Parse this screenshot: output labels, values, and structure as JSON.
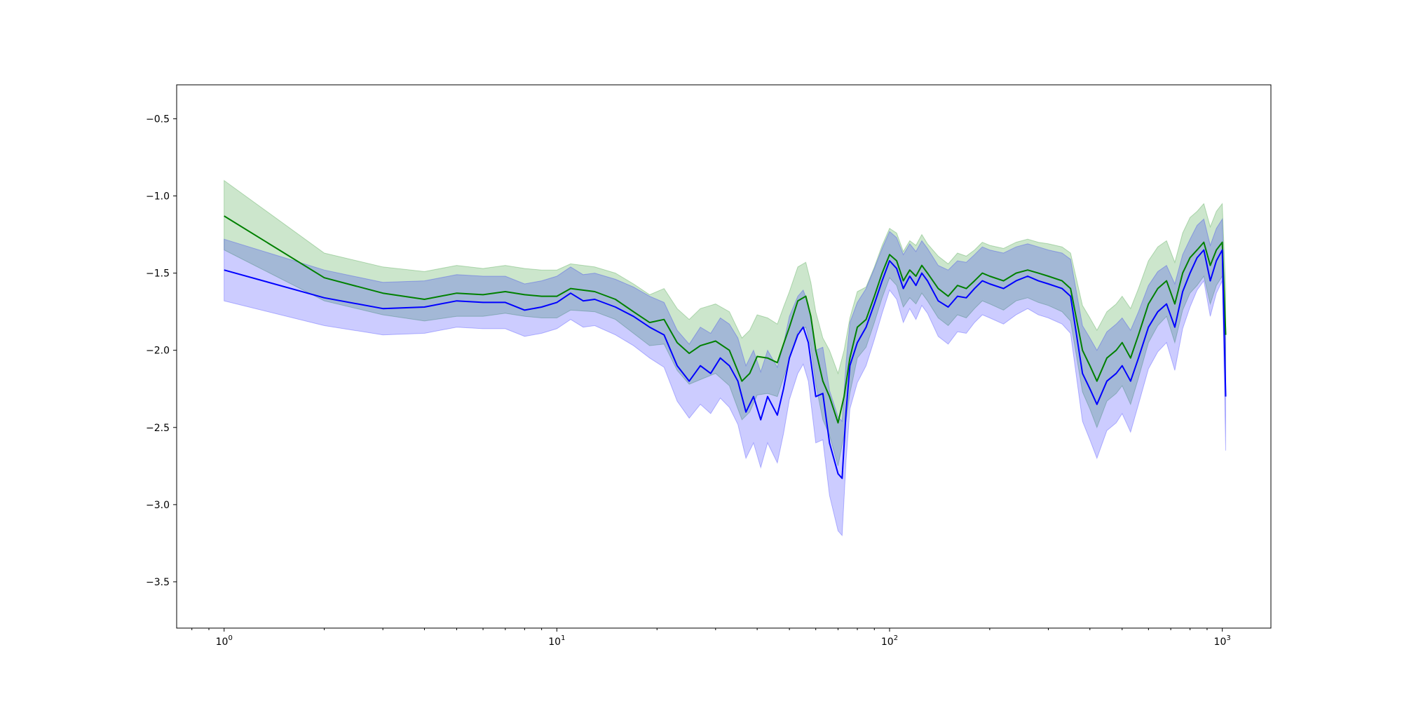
{
  "chart_data": {
    "type": "line",
    "title": "",
    "xlabel": "",
    "ylabel": "",
    "xscale": "log",
    "xlim": [
      0.72,
      1400
    ],
    "ylim": [
      -3.8,
      -0.28
    ],
    "grid": false,
    "legend": "none",
    "x_ticks": [
      {
        "base": "10",
        "exp": "0",
        "value": 1
      },
      {
        "base": "10",
        "exp": "1",
        "value": 10
      },
      {
        "base": "10",
        "exp": "2",
        "value": 100
      },
      {
        "base": "10",
        "exp": "3",
        "value": 1000
      }
    ],
    "y_ticks": [
      {
        "label": "−0.5",
        "value": -0.5
      },
      {
        "label": "−1.0",
        "value": -1.0
      },
      {
        "label": "−1.5",
        "value": -1.5
      },
      {
        "label": "−2.0",
        "value": -2.0
      },
      {
        "label": "−2.5",
        "value": -2.5
      },
      {
        "label": "−3.0",
        "value": -3.0
      },
      {
        "label": "−3.5",
        "value": -3.5
      }
    ],
    "series": [
      {
        "color": "#008000",
        "band_color": "#008000",
        "band_opacity": 0.2,
        "x": [
          1,
          2,
          3,
          4,
          5,
          6,
          7,
          8,
          9,
          10,
          11,
          13,
          15,
          17,
          19,
          21,
          23,
          25,
          27,
          30,
          33,
          36,
          38,
          40,
          43,
          46,
          48,
          50,
          53,
          56,
          58,
          60,
          63,
          66,
          70,
          73,
          76,
          80,
          85,
          90,
          95,
          100,
          105,
          110,
          115,
          120,
          125,
          130,
          140,
          150,
          160,
          170,
          180,
          190,
          200,
          220,
          240,
          260,
          280,
          300,
          330,
          350,
          380,
          400,
          420,
          450,
          480,
          500,
          530,
          560,
          600,
          640,
          680,
          720,
          760,
          800,
          840,
          880,
          920,
          960,
          1000,
          1024
        ],
        "y": [
          -1.13,
          -1.53,
          -1.63,
          -1.67,
          -1.63,
          -1.64,
          -1.62,
          -1.64,
          -1.65,
          -1.65,
          -1.6,
          -1.62,
          -1.67,
          -1.75,
          -1.82,
          -1.8,
          -1.95,
          -2.02,
          -1.97,
          -1.94,
          -2.0,
          -2.2,
          -2.15,
          -2.04,
          -2.05,
          -2.08,
          -1.96,
          -1.85,
          -1.68,
          -1.65,
          -1.78,
          -2.0,
          -2.2,
          -2.3,
          -2.47,
          -2.3,
          -2.05,
          -1.85,
          -1.8,
          -1.65,
          -1.5,
          -1.38,
          -1.42,
          -1.55,
          -1.48,
          -1.52,
          -1.45,
          -1.5,
          -1.6,
          -1.65,
          -1.58,
          -1.6,
          -1.55,
          -1.5,
          -1.52,
          -1.55,
          -1.5,
          -1.48,
          -1.5,
          -1.52,
          -1.55,
          -1.6,
          -2.0,
          -2.1,
          -2.2,
          -2.05,
          -2.0,
          -1.95,
          -2.05,
          -1.9,
          -1.7,
          -1.6,
          -1.55,
          -1.7,
          -1.5,
          -1.4,
          -1.35,
          -1.3,
          -1.45,
          -1.35,
          -1.3,
          -1.9
        ],
        "lower": [
          -1.35,
          -1.68,
          -1.77,
          -1.81,
          -1.78,
          -1.78,
          -1.76,
          -1.78,
          -1.79,
          -1.79,
          -1.74,
          -1.75,
          -1.8,
          -1.89,
          -1.97,
          -1.96,
          -2.13,
          -2.22,
          -2.19,
          -2.15,
          -2.23,
          -2.45,
          -2.4,
          -2.29,
          -2.28,
          -2.3,
          -2.18,
          -2.06,
          -1.88,
          -1.85,
          -1.98,
          -2.22,
          -2.45,
          -2.55,
          -2.75,
          -2.55,
          -2.28,
          -2.05,
          -1.98,
          -1.82,
          -1.66,
          -1.53,
          -1.58,
          -1.72,
          -1.66,
          -1.7,
          -1.63,
          -1.68,
          -1.79,
          -1.84,
          -1.77,
          -1.79,
          -1.73,
          -1.68,
          -1.7,
          -1.74,
          -1.68,
          -1.66,
          -1.69,
          -1.71,
          -1.75,
          -1.81,
          -2.27,
          -2.38,
          -2.5,
          -2.33,
          -2.28,
          -2.23,
          -2.35,
          -2.18,
          -1.95,
          -1.84,
          -1.78,
          -1.95,
          -1.74,
          -1.63,
          -1.58,
          -1.52,
          -1.7,
          -1.58,
          -1.52,
          -2.2
        ],
        "upper": [
          -0.9,
          -1.37,
          -1.46,
          -1.49,
          -1.45,
          -1.47,
          -1.45,
          -1.47,
          -1.48,
          -1.48,
          -1.44,
          -1.46,
          -1.5,
          -1.57,
          -1.64,
          -1.6,
          -1.73,
          -1.8,
          -1.73,
          -1.7,
          -1.75,
          -1.92,
          -1.87,
          -1.77,
          -1.79,
          -1.83,
          -1.72,
          -1.62,
          -1.46,
          -1.43,
          -1.56,
          -1.75,
          -1.92,
          -2.0,
          -2.15,
          -2.0,
          -1.79,
          -1.62,
          -1.59,
          -1.46,
          -1.32,
          -1.21,
          -1.24,
          -1.36,
          -1.29,
          -1.32,
          -1.25,
          -1.31,
          -1.39,
          -1.44,
          -1.37,
          -1.39,
          -1.35,
          -1.3,
          -1.32,
          -1.34,
          -1.3,
          -1.28,
          -1.3,
          -1.31,
          -1.33,
          -1.37,
          -1.71,
          -1.79,
          -1.87,
          -1.75,
          -1.7,
          -1.65,
          -1.73,
          -1.6,
          -1.42,
          -1.33,
          -1.29,
          -1.43,
          -1.24,
          -1.14,
          -1.1,
          -1.05,
          -1.2,
          -1.1,
          -1.05,
          -1.6
        ]
      },
      {
        "color": "#0000ff",
        "band_color": "#0000ff",
        "band_opacity": 0.2,
        "x": [
          1,
          2,
          3,
          4,
          5,
          6,
          7,
          8,
          9,
          10,
          11,
          12,
          13,
          15,
          17,
          19,
          21,
          23,
          25,
          27,
          29,
          31,
          33,
          35,
          37,
          39,
          41,
          43,
          46,
          48,
          50,
          53,
          55,
          57,
          60,
          63,
          66,
          70,
          72,
          74,
          76,
          80,
          85,
          90,
          95,
          100,
          105,
          110,
          115,
          120,
          125,
          130,
          140,
          150,
          160,
          170,
          180,
          190,
          200,
          220,
          240,
          260,
          280,
          300,
          330,
          350,
          380,
          400,
          420,
          450,
          480,
          500,
          530,
          560,
          600,
          640,
          680,
          720,
          760,
          800,
          840,
          880,
          920,
          960,
          1000,
          1024
        ],
        "y": [
          -1.48,
          -1.66,
          -1.73,
          -1.72,
          -1.68,
          -1.69,
          -1.69,
          -1.74,
          -1.72,
          -1.69,
          -1.63,
          -1.68,
          -1.67,
          -1.72,
          -1.78,
          -1.85,
          -1.9,
          -2.1,
          -2.2,
          -2.1,
          -2.15,
          -2.05,
          -2.1,
          -2.2,
          -2.4,
          -2.3,
          -2.45,
          -2.3,
          -2.42,
          -2.25,
          -2.05,
          -1.9,
          -1.85,
          -1.95,
          -2.3,
          -2.28,
          -2.6,
          -2.8,
          -2.83,
          -2.4,
          -2.1,
          -1.95,
          -1.85,
          -1.7,
          -1.55,
          -1.42,
          -1.47,
          -1.6,
          -1.52,
          -1.58,
          -1.5,
          -1.55,
          -1.68,
          -1.72,
          -1.65,
          -1.66,
          -1.6,
          -1.55,
          -1.57,
          -1.6,
          -1.55,
          -1.52,
          -1.55,
          -1.57,
          -1.6,
          -1.65,
          -2.15,
          -2.25,
          -2.35,
          -2.2,
          -2.15,
          -2.1,
          -2.2,
          -2.05,
          -1.85,
          -1.75,
          -1.7,
          -1.85,
          -1.62,
          -1.5,
          -1.4,
          -1.35,
          -1.55,
          -1.42,
          -1.35,
          -2.3
        ],
        "lower": [
          -1.68,
          -1.84,
          -1.9,
          -1.89,
          -1.85,
          -1.86,
          -1.86,
          -1.91,
          -1.89,
          -1.86,
          -1.8,
          -1.85,
          -1.84,
          -1.9,
          -1.97,
          -2.05,
          -2.11,
          -2.33,
          -2.44,
          -2.35,
          -2.41,
          -2.31,
          -2.37,
          -2.48,
          -2.7,
          -2.6,
          -2.76,
          -2.6,
          -2.73,
          -2.54,
          -2.32,
          -2.15,
          -2.09,
          -2.2,
          -2.6,
          -2.58,
          -2.94,
          -3.17,
          -3.2,
          -2.72,
          -2.38,
          -2.21,
          -2.1,
          -1.93,
          -1.76,
          -1.61,
          -1.67,
          -1.82,
          -1.73,
          -1.8,
          -1.71,
          -1.76,
          -1.91,
          -1.96,
          -1.88,
          -1.89,
          -1.82,
          -1.77,
          -1.79,
          -1.83,
          -1.77,
          -1.73,
          -1.77,
          -1.79,
          -1.83,
          -1.89,
          -2.46,
          -2.58,
          -2.7,
          -2.52,
          -2.47,
          -2.41,
          -2.53,
          -2.35,
          -2.12,
          -2.01,
          -1.95,
          -2.13,
          -1.86,
          -1.72,
          -1.61,
          -1.55,
          -1.78,
          -1.63,
          -1.55,
          -2.65
        ],
        "upper": [
          -1.28,
          -1.48,
          -1.56,
          -1.55,
          -1.51,
          -1.52,
          -1.52,
          -1.57,
          -1.55,
          -1.52,
          -1.46,
          -1.51,
          -1.5,
          -1.54,
          -1.59,
          -1.65,
          -1.69,
          -1.87,
          -1.96,
          -1.85,
          -1.89,
          -1.79,
          -1.83,
          -1.92,
          -2.1,
          -2.0,
          -2.14,
          -2.0,
          -2.11,
          -1.96,
          -1.78,
          -1.65,
          -1.61,
          -1.7,
          -2.0,
          -1.98,
          -2.26,
          -2.43,
          -2.46,
          -2.08,
          -1.82,
          -1.69,
          -1.6,
          -1.47,
          -1.34,
          -1.23,
          -1.27,
          -1.38,
          -1.31,
          -1.36,
          -1.29,
          -1.34,
          -1.45,
          -1.48,
          -1.42,
          -1.43,
          -1.38,
          -1.33,
          -1.35,
          -1.37,
          -1.33,
          -1.31,
          -1.33,
          -1.35,
          -1.37,
          -1.41,
          -1.84,
          -1.92,
          -2.0,
          -1.88,
          -1.83,
          -1.79,
          -1.87,
          -1.75,
          -1.58,
          -1.49,
          -1.45,
          -1.57,
          -1.38,
          -1.28,
          -1.19,
          -1.15,
          -1.32,
          -1.21,
          -1.15,
          -1.95
        ]
      }
    ]
  }
}
